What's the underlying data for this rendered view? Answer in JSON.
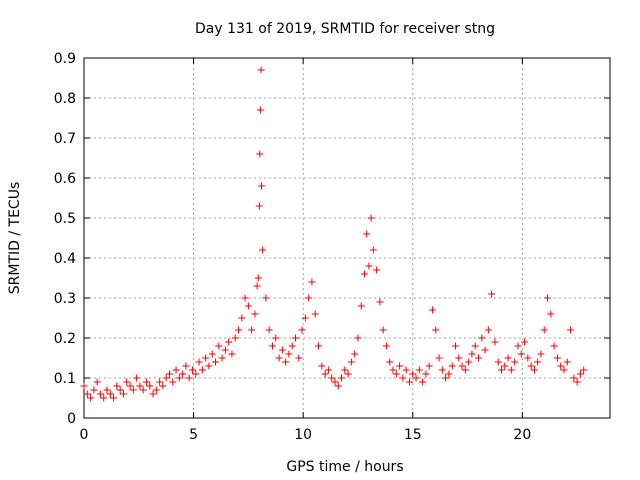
{
  "chart_data": {
    "type": "scatter",
    "title": "Day 131 of 2019, SRMTID for receiver stng",
    "xlabel": "GPS time / hours",
    "ylabel": "SRMTID / TECUs",
    "xlim": [
      0,
      24
    ],
    "ylim": [
      0,
      0.9
    ],
    "xticks": [
      0,
      5,
      10,
      15,
      20
    ],
    "yticks": [
      0,
      0.1,
      0.2,
      0.3,
      0.4,
      0.5,
      0.6,
      0.7,
      0.8,
      0.9
    ],
    "xtick_labels": [
      "0",
      "5",
      "10",
      "15",
      "20"
    ],
    "ytick_labels": [
      "0",
      "0.1",
      "0.2",
      "0.3",
      "0.4",
      "0.5",
      "0.6",
      "0.7",
      "0.8",
      "0.9"
    ],
    "grid": true,
    "marker": "+",
    "color": "#ff0000",
    "series": [
      {
        "name": "SRMTID",
        "x": [
          0.0,
          0.15,
          0.3,
          0.45,
          0.6,
          0.75,
          0.9,
          1.05,
          1.2,
          1.35,
          1.5,
          1.65,
          1.8,
          1.95,
          2.1,
          2.25,
          2.4,
          2.55,
          2.7,
          2.85,
          3.0,
          3.15,
          3.3,
          3.45,
          3.6,
          3.75,
          3.9,
          4.05,
          4.2,
          4.35,
          4.5,
          4.65,
          4.8,
          4.95,
          5.1,
          5.25,
          5.4,
          5.55,
          5.7,
          5.85,
          6.0,
          6.15,
          6.3,
          6.45,
          6.6,
          6.75,
          6.9,
          7.05,
          7.2,
          7.35,
          7.5,
          7.65,
          7.8,
          7.9,
          7.95,
          8.0,
          8.02,
          8.05,
          8.08,
          8.1,
          8.15,
          8.3,
          8.45,
          8.6,
          8.75,
          8.9,
          9.05,
          9.2,
          9.35,
          9.5,
          9.65,
          9.8,
          9.95,
          10.1,
          10.25,
          10.4,
          10.55,
          10.7,
          10.85,
          11.0,
          11.15,
          11.3,
          11.45,
          11.6,
          11.75,
          11.9,
          12.05,
          12.2,
          12.35,
          12.5,
          12.65,
          12.8,
          12.9,
          13.0,
          13.1,
          13.2,
          13.35,
          13.5,
          13.65,
          13.8,
          13.95,
          14.1,
          14.25,
          14.4,
          14.55,
          14.7,
          14.85,
          15.0,
          15.15,
          15.3,
          15.45,
          15.6,
          15.75,
          15.9,
          16.05,
          16.2,
          16.35,
          16.5,
          16.65,
          16.8,
          16.95,
          17.1,
          17.25,
          17.4,
          17.55,
          17.7,
          17.85,
          18.0,
          18.15,
          18.3,
          18.45,
          18.6,
          18.75,
          18.9,
          19.05,
          19.2,
          19.35,
          19.5,
          19.65,
          19.8,
          19.95,
          20.1,
          20.25,
          20.4,
          20.55,
          20.7,
          20.85,
          21.0,
          21.15,
          21.3,
          21.45,
          21.6,
          21.75,
          21.9,
          22.05,
          22.2,
          22.35,
          22.5,
          22.65,
          22.8
        ],
        "y": [
          0.08,
          0.06,
          0.05,
          0.07,
          0.09,
          0.06,
          0.05,
          0.07,
          0.06,
          0.05,
          0.08,
          0.07,
          0.06,
          0.09,
          0.08,
          0.07,
          0.1,
          0.08,
          0.07,
          0.09,
          0.08,
          0.06,
          0.07,
          0.09,
          0.08,
          0.1,
          0.11,
          0.09,
          0.12,
          0.1,
          0.11,
          0.13,
          0.1,
          0.12,
          0.11,
          0.14,
          0.12,
          0.15,
          0.13,
          0.16,
          0.14,
          0.18,
          0.15,
          0.17,
          0.19,
          0.16,
          0.2,
          0.22,
          0.25,
          0.3,
          0.28,
          0.22,
          0.26,
          0.33,
          0.35,
          0.53,
          0.66,
          0.77,
          0.87,
          0.58,
          0.42,
          0.3,
          0.22,
          0.18,
          0.2,
          0.15,
          0.17,
          0.14,
          0.16,
          0.18,
          0.2,
          0.15,
          0.22,
          0.25,
          0.3,
          0.34,
          0.26,
          0.18,
          0.13,
          0.11,
          0.12,
          0.1,
          0.09,
          0.08,
          0.1,
          0.12,
          0.11,
          0.14,
          0.16,
          0.2,
          0.28,
          0.36,
          0.46,
          0.38,
          0.5,
          0.42,
          0.37,
          0.29,
          0.22,
          0.18,
          0.14,
          0.12,
          0.11,
          0.13,
          0.1,
          0.12,
          0.09,
          0.11,
          0.1,
          0.12,
          0.09,
          0.11,
          0.13,
          0.27,
          0.22,
          0.15,
          0.12,
          0.1,
          0.11,
          0.13,
          0.18,
          0.15,
          0.13,
          0.12,
          0.14,
          0.16,
          0.18,
          0.15,
          0.2,
          0.17,
          0.22,
          0.31,
          0.19,
          0.14,
          0.12,
          0.13,
          0.15,
          0.12,
          0.14,
          0.18,
          0.16,
          0.19,
          0.15,
          0.13,
          0.12,
          0.14,
          0.16,
          0.22,
          0.3,
          0.26,
          0.18,
          0.15,
          0.13,
          0.12,
          0.14,
          0.22,
          0.1,
          0.09,
          0.11,
          0.12
        ]
      }
    ]
  }
}
